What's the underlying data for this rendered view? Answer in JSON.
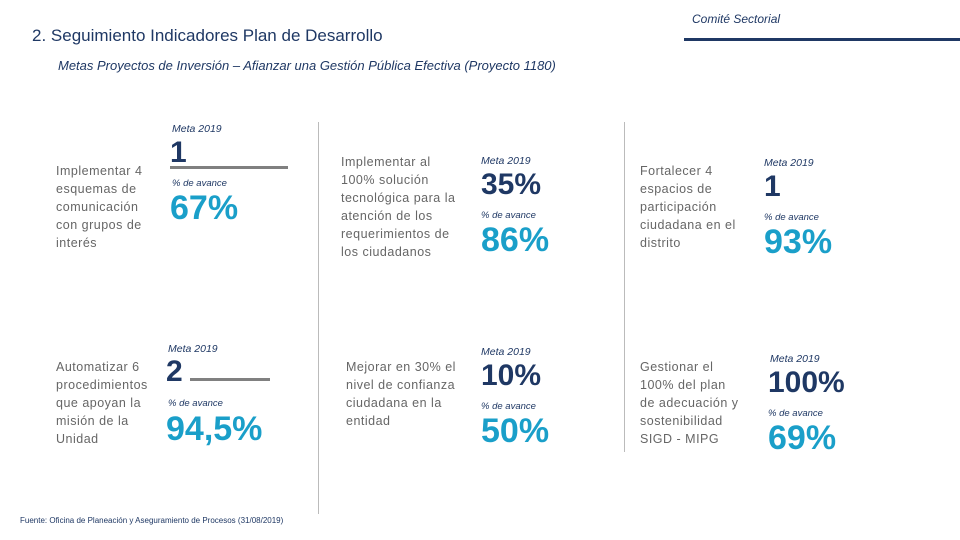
{
  "header": {
    "title": "2. Seguimiento Indicadores Plan de Desarrollo",
    "comite": "Comité Sectorial",
    "subtitle": "Metas Proyectos de Inversión – Afianzar una Gestión Pública Efectiva (Proyecto 1180)"
  },
  "indicators": [
    {
      "description": "Implementar 4 esquemas de comunicación con grupos de interés",
      "meta_label": "Meta 2019",
      "meta_value": "1",
      "avance_label": "% de avance",
      "avance_value": "67%"
    },
    {
      "description": "Automatizar 6 procedimientos que apoyan la misión de la Unidad",
      "meta_label": "Meta 2019",
      "meta_value": "2",
      "avance_label": "% de avance",
      "avance_value": "94,5%"
    },
    {
      "description": "Implementar al 100% solución tecnológica para la atención de los requerimientos de los ciudadanos",
      "meta_label": "Meta 2019",
      "meta_value": "35%",
      "avance_label": "% de avance",
      "avance_value": "86%"
    },
    {
      "description": "Mejorar en 30% el nivel de confianza ciudadana en la entidad",
      "meta_label": "Meta 2019",
      "meta_value": "10%",
      "avance_label": "% de avance",
      "avance_value": "50%"
    },
    {
      "description": "Fortalecer 4 espacios de participación ciudadana en el distrito",
      "meta_label": "Meta 2019",
      "meta_value": "1",
      "avance_label": "% de avance",
      "avance_value": "93%"
    },
    {
      "description": "Gestionar el 100% del plan de adecuación y sostenibilidad SIGD - MIPG",
      "meta_label": "Meta 2019",
      "meta_value": "100%",
      "avance_label": "% de avance",
      "avance_value": "69%"
    }
  ],
  "footer": {
    "source": "Fuente: Oficina de Planeación y Aseguramiento de Procesos (31/08/2019)"
  }
}
